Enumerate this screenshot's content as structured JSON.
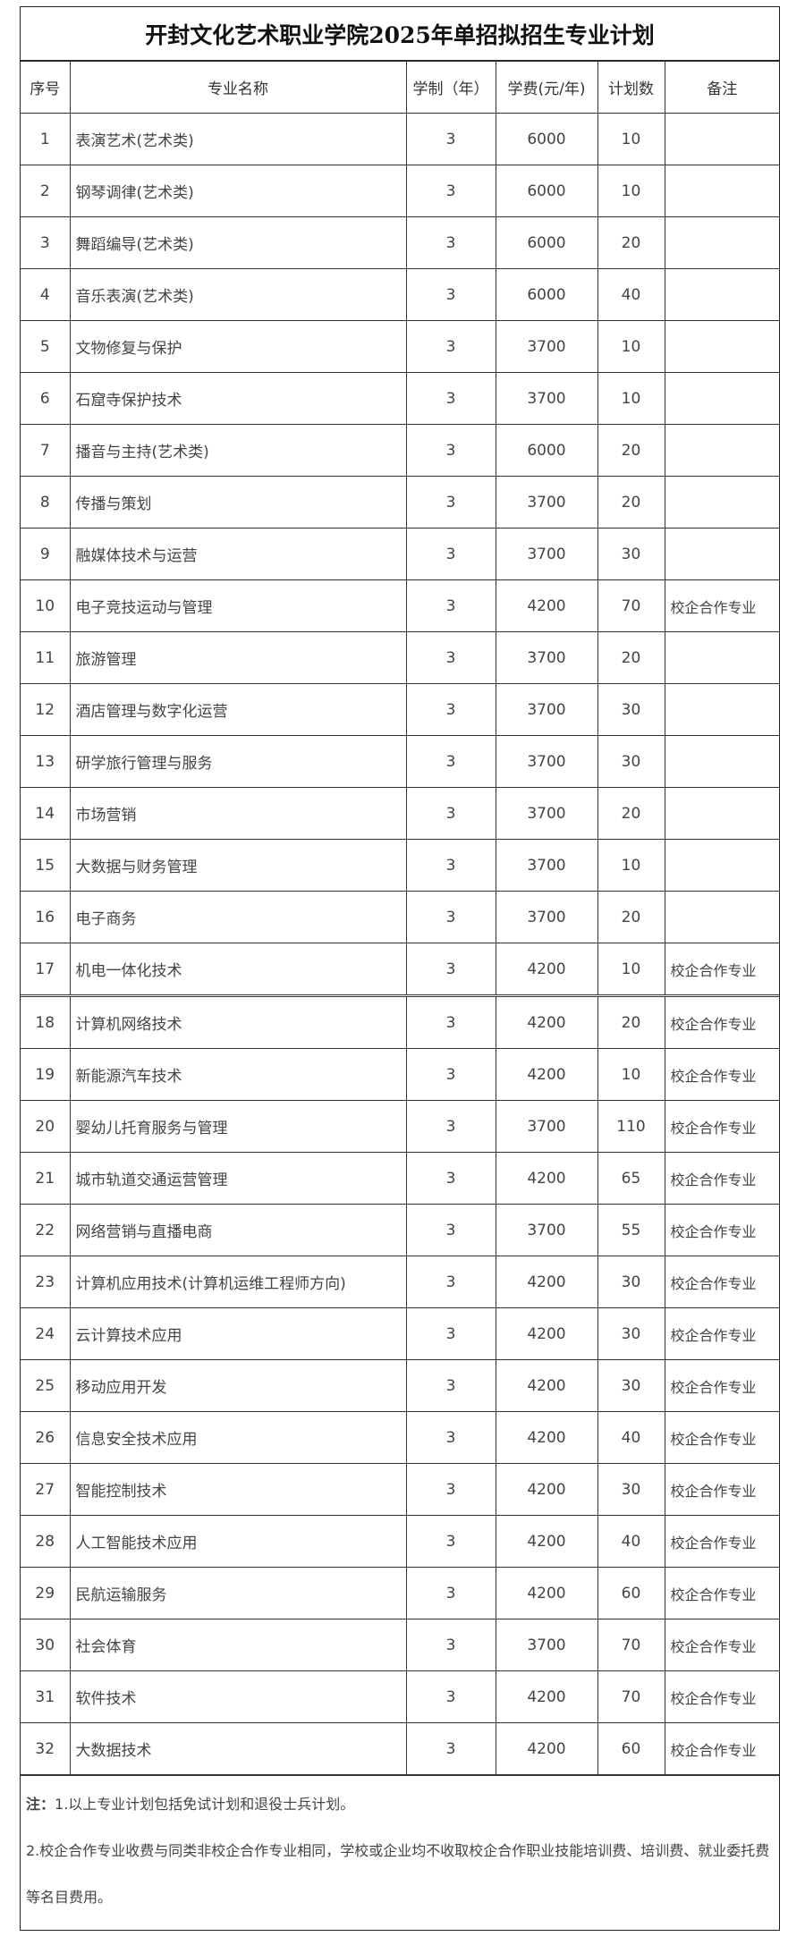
{
  "title": "开封文化艺术职业学院2025年单招拟招生专业计划",
  "headers": [
    "序号",
    "专业名称",
    "学制（年）",
    "学费(元/年)",
    "计划数",
    "备注"
  ],
  "rows": [
    [
      "1",
      "表演艺术(艺术类)",
      "3",
      "6000",
      "10",
      ""
    ],
    [
      "2",
      "钢琴调律(艺术类)",
      "3",
      "6000",
      "10",
      ""
    ],
    [
      "3",
      "舞蹈编导(艺术类)",
      "3",
      "6000",
      "20",
      ""
    ],
    [
      "4",
      "音乐表演(艺术类)",
      "3",
      "6000",
      "40",
      ""
    ],
    [
      "5",
      "文物修复与保护",
      "3",
      "3700",
      "10",
      ""
    ],
    [
      "6",
      "石窟寺保护技术",
      "3",
      "3700",
      "10",
      ""
    ],
    [
      "7",
      "播音与主持(艺术类)",
      "3",
      "6000",
      "20",
      ""
    ],
    [
      "8",
      "传播与策划",
      "3",
      "3700",
      "20",
      ""
    ],
    [
      "9",
      "融媒体技术与运营",
      "3",
      "3700",
      "30",
      ""
    ],
    [
      "10",
      "电子竞技运动与管理",
      "3",
      "4200",
      "70",
      "校企合作专业"
    ],
    [
      "11",
      "旅游管理",
      "3",
      "3700",
      "20",
      ""
    ],
    [
      "12",
      "酒店管理与数字化运营",
      "3",
      "3700",
      "30",
      ""
    ],
    [
      "13",
      "研学旅行管理与服务",
      "3",
      "3700",
      "30",
      ""
    ],
    [
      "14",
      "市场营销",
      "3",
      "3700",
      "20",
      ""
    ],
    [
      "15",
      "大数据与财务管理",
      "3",
      "3700",
      "10",
      ""
    ],
    [
      "16",
      "电子商务",
      "3",
      "3700",
      "20",
      ""
    ],
    [
      "17",
      "机电一体化技术",
      "3",
      "4200",
      "10",
      "校企合作专业"
    ],
    [
      "18",
      "计算机网络技术",
      "3",
      "4200",
      "20",
      "校企合作专业"
    ],
    [
      "19",
      "新能源汽车技术",
      "3",
      "4200",
      "10",
      "校企合作专业"
    ],
    [
      "20",
      "婴幼儿托育服务与管理",
      "3",
      "3700",
      "110",
      "校企合作专业"
    ],
    [
      "21",
      "城市轨道交通运营管理",
      "3",
      "4200",
      "65",
      "校企合作专业"
    ],
    [
      "22",
      "网络营销与直播电商",
      "3",
      "3700",
      "55",
      "校企合作专业"
    ],
    [
      "23",
      "计算机应用技术(计算机运维工程师方向)",
      "3",
      "4200",
      "30",
      "校企合作专业"
    ],
    [
      "24",
      "云计算技术应用",
      "3",
      "4200",
      "30",
      "校企合作专业"
    ],
    [
      "25",
      "移动应用开发",
      "3",
      "4200",
      "30",
      "校企合作专业"
    ],
    [
      "26",
      "信息安全技术应用",
      "3",
      "4200",
      "40",
      "校企合作专业"
    ],
    [
      "27",
      "智能控制技术",
      "3",
      "4200",
      "30",
      "校企合作专业"
    ],
    [
      "28",
      "人工智能技术应用",
      "3",
      "4200",
      "40",
      "校企合作专业"
    ],
    [
      "29",
      "民航运输服务",
      "3",
      "4200",
      "60",
      "校企合作专业"
    ],
    [
      "30",
      "社会体育",
      "3",
      "3700",
      "70",
      "校企合作专业"
    ],
    [
      "31",
      "软件技术",
      "3",
      "4200",
      "70",
      "校企合作专业"
    ],
    [
      "32",
      "大数据技术",
      "3",
      "4200",
      "60",
      "校企合作专业"
    ]
  ],
  "notes": {
    "label": "注：",
    "line1": "1.以上专业计划包括免试计划和退役士兵计划。",
    "line2": "2.校企合作专业收费与同类非校企合作专业相同，学校或企业均不收取校企合作职业技能培训费、培训费、就业委托费等名目费用。"
  }
}
